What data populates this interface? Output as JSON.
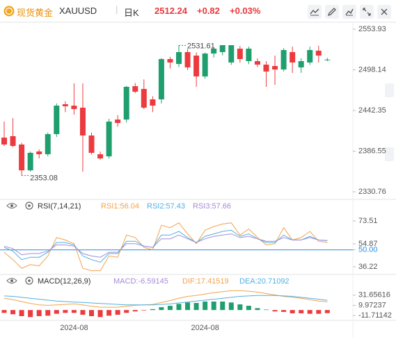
{
  "header": {
    "name": "现货黄金",
    "symbol": "XAUUSD",
    "period": "日K",
    "price": "2512.24",
    "change": "+0.82",
    "change_pct": "+0.03%"
  },
  "chart_data": [
    {
      "type": "candlestick",
      "categories": [
        null,
        null,
        null,
        null,
        null,
        null,
        null,
        null,
        "2024-08",
        null,
        null,
        null,
        null,
        null,
        null,
        null,
        null,
        null,
        null,
        null,
        null,
        null,
        null,
        "2024-08",
        null,
        null,
        null,
        null,
        null,
        null,
        null,
        null,
        null,
        null,
        null,
        null,
        null,
        null
      ],
      "open": [
        2405.1,
        2407.1,
        2395.6,
        2360.2,
        2386.1,
        2382.3,
        2409.9,
        2450.9,
        2449.0,
        2446.2,
        2408.0,
        2382.3,
        2379.4,
        2429.9,
        2429.9,
        2475.7,
        2471.9,
        2457.6,
        2457.6,
        2512.9,
        2506.2,
        2522.5,
        2517.7,
        2489.1,
        2520.5,
        2522.5,
        2508.2,
        2527.2,
        2510.1,
        2510.1,
        2505.3,
        2503.4,
        2498.6,
        2522.5,
        2501.5,
        2508.2,
        2524.4,
        2511.42
      ],
      "high": [
        2427.1,
        2431.8,
        2398.0,
        2386.1,
        2389.0,
        2412.0,
        2452.0,
        2455.0,
        2479.5,
        2479.5,
        2412.0,
        2386.0,
        2431.0,
        2436.0,
        2476.0,
        2480.0,
        2485.0,
        2462.0,
        2514.0,
        2516.0,
        2531.61,
        2527.0,
        2522.0,
        2522.0,
        2529.0,
        2530.0,
        2531.0,
        2531.0,
        2530.0,
        2514.0,
        2510.0,
        2517.7,
        2528.0,
        2530.0,
        2514.0,
        2530.0,
        2531.2,
        2514.5
      ],
      "low": [
        2393.7,
        2391.8,
        2353.08,
        2358.4,
        2376.5,
        2379.4,
        2406.0,
        2440.0,
        2436.6,
        2358.4,
        2382.0,
        2374.6,
        2376.5,
        2420.0,
        2426.0,
        2466.0,
        2444.0,
        2440.0,
        2452.0,
        2500.0,
        2502.0,
        2498.0,
        2474.8,
        2486.0,
        2515.0,
        2518.0,
        2505.0,
        2508.0,
        2506.0,
        2502.0,
        2474.8,
        2477.6,
        2496.0,
        2493.9,
        2494.0,
        2505.0,
        2508.2,
        2510.0
      ],
      "close": [
        2395.6,
        2393.7,
        2360.2,
        2384.2,
        2382.3,
        2409.9,
        2449.0,
        2448.1,
        2444.3,
        2408.0,
        2384.2,
        2376.5,
        2427.1,
        2425.2,
        2474.8,
        2468.1,
        2446.2,
        2449.0,
        2512.9,
        2508.2,
        2522.5,
        2501.5,
        2489.1,
        2520.5,
        2527.2,
        2532.0,
        2532.0,
        2512.9,
        2527.2,
        2505.3,
        2495.8,
        2498.6,
        2525.3,
        2508.2,
        2510.1,
        2525.3,
        2517.7,
        2512.24
      ],
      "up_color": "#1f9e6e",
      "down_color": "#ec3b3e",
      "ylim": [
        2330.76,
        2553.93
      ],
      "yticks": [
        2553.93,
        2498.14,
        2442.35,
        2386.55,
        2330.76
      ]
    },
    {
      "type": "line",
      "title": "RSI(7,14,21)",
      "series": [
        {
          "name": "RSI1:56.04",
          "color": "#f3a24a",
          "values": [
            48,
            42,
            35,
            38,
            37,
            45,
            60,
            58,
            55,
            35,
            33,
            33,
            45,
            44,
            62,
            60,
            52,
            50,
            70,
            68,
            72,
            63,
            55,
            66,
            69,
            71,
            72,
            62,
            67,
            60,
            54,
            55,
            68,
            58,
            60,
            65,
            57,
            56.04
          ]
        },
        {
          "name": "RSI2:57.43",
          "color": "#4fb0e0",
          "values": [
            52,
            49,
            42,
            44,
            44,
            48,
            56,
            56,
            54,
            45,
            42,
            40,
            47,
            47,
            57,
            57,
            53,
            52,
            62,
            62,
            65,
            60,
            56,
            61,
            63,
            65,
            66,
            61,
            63,
            59,
            56,
            56,
            62,
            58,
            58,
            61,
            58,
            57.43
          ]
        },
        {
          "name": "RSI3:57.66",
          "color": "#a58ad6",
          "values": [
            53,
            51,
            46,
            47,
            47,
            49,
            54,
            54,
            53,
            47,
            45,
            44,
            48,
            48,
            55,
            55,
            53,
            52,
            59,
            59,
            62,
            59,
            56,
            59,
            61,
            62,
            63,
            60,
            61,
            59,
            57,
            57,
            60,
            58,
            58,
            60,
            58,
            57.66
          ]
        }
      ],
      "ylim": [
        32.8,
        80.85
      ],
      "yticks": [
        73.51,
        54.87,
        {
          "value": 50,
          "label": "50.00"
        },
        36.22
      ],
      "highlight_tick": 2,
      "highlight_color": "#2b8de0"
    },
    {
      "type": "macd",
      "title": "MACD(12,26,9)",
      "histogram": {
        "name": "MACD:-6.59145",
        "color": "#a58ad6",
        "up_color": "#1f9e6e",
        "down_color": "#ec3b3e",
        "values": [
          -6,
          -9,
          -13,
          -15,
          -13,
          -12,
          -8,
          -6,
          -6,
          -10,
          -13,
          -15,
          -12,
          -10,
          -6,
          -3,
          -1,
          2,
          6,
          9,
          13,
          16,
          15,
          18,
          18,
          18,
          16,
          12,
          9,
          4,
          1,
          -3,
          -4,
          -7,
          -7,
          -8,
          -8,
          -6.59
        ]
      },
      "series": [
        {
          "name": "DIF:17.41519",
          "color": "#f3a24a",
          "values": [
            25,
            22,
            18,
            14,
            11,
            10,
            11,
            12,
            13,
            11,
            8,
            6,
            6,
            6,
            8,
            10,
            11,
            12,
            16,
            20,
            25,
            29,
            31,
            34,
            37,
            39,
            41,
            41,
            40,
            38,
            35,
            32,
            29,
            27,
            25,
            22,
            19,
            17.42
          ]
        },
        {
          "name": "DEA:20.71092",
          "color": "#4fb0e0",
          "values": [
            30,
            29,
            27,
            25,
            23,
            21,
            19,
            18,
            17,
            16,
            15,
            14,
            13,
            12,
            11,
            11,
            11,
            11,
            12,
            13,
            15,
            17,
            19,
            21,
            23,
            25,
            27,
            29,
            30,
            31,
            31,
            31,
            30,
            29,
            27,
            25,
            23,
            20.71
          ]
        }
      ],
      "ylim": [
        -20.39,
        50.45
      ],
      "yticks": [
        31.65616,
        9.97237,
        -11.71142
      ]
    }
  ]
}
